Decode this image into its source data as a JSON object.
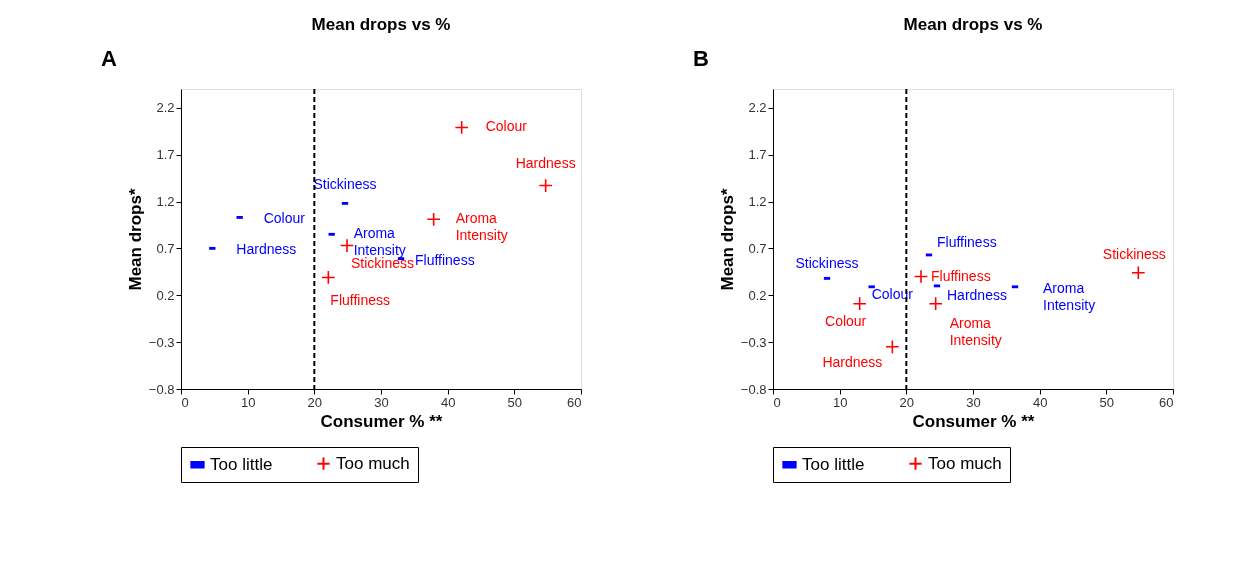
{
  "chart_data": [
    {
      "type": "scatter",
      "title": "Mean drops vs %",
      "xlabel": "Consumer % **",
      "ylabel": "Mean drops*",
      "annotations": [
        "A"
      ],
      "xlim": [
        0,
        60
      ],
      "xticks": [
        0,
        10,
        20,
        30,
        40,
        50,
        60
      ],
      "ylim": [
        -0.8,
        2.4
      ],
      "yticks": [
        2.2,
        1.7,
        1.2,
        0.7,
        0.2,
        -0.3,
        -0.8
      ],
      "grid": false,
      "legend": "bottom",
      "ref_lines": [
        {
          "axis": "x",
          "value": 20,
          "line_style": "dashed",
          "color": "#000000"
        }
      ],
      "series": [
        {
          "name": "Too little",
          "color": "#0000ff",
          "marker": "square",
          "x": [
            8.8,
            4.7,
            24.6,
            22.6,
            33.0
          ],
          "values": [
            1.03,
            0.7,
            1.18,
            0.85,
            0.59
          ],
          "value_labels": [
            "Colour",
            "Hardness",
            "Stickiness",
            "Aroma Intensity",
            "Fluffiness"
          ]
        },
        {
          "name": "Too much",
          "color": "#ff0000",
          "marker": "cross",
          "x": [
            42.1,
            54.7,
            37.9,
            24.9,
            22.1
          ],
          "values": [
            1.99,
            1.37,
            1.01,
            0.73,
            0.39
          ],
          "value_labels": [
            "Colour",
            "Hardness",
            "Aroma Intensity",
            "Stickiness",
            "Fluffiness"
          ]
        }
      ]
    },
    {
      "type": "scatter",
      "title": "Mean drops vs %",
      "xlabel": "Consumer % **",
      "ylabel": "Mean drops*",
      "annotations": [
        "B"
      ],
      "xlim": [
        0,
        60
      ],
      "xticks": [
        0,
        10,
        20,
        30,
        40,
        50,
        60
      ],
      "ylim": [
        -0.8,
        2.4
      ],
      "yticks": [
        2.2,
        1.7,
        1.2,
        0.7,
        0.2,
        -0.3,
        -0.8
      ],
      "grid": false,
      "legend": "bottom",
      "ref_lines": [
        {
          "axis": "x",
          "value": 20,
          "line_style": "dashed",
          "color": "#000000"
        }
      ],
      "series": [
        {
          "name": "Too little",
          "color": "#0000ff",
          "marker": "square",
          "x": [
            23.4,
            8.1,
            14.8,
            24.6,
            36.3
          ],
          "values": [
            0.63,
            0.38,
            0.29,
            0.3,
            0.29
          ],
          "value_labels": [
            "Fluffiness",
            "Stickiness",
            "Colour",
            "Hardness",
            "Aroma Intensity"
          ]
        },
        {
          "name": "Too much",
          "color": "#ff0000",
          "marker": "cross",
          "x": [
            54.8,
            22.2,
            13.0,
            24.4,
            17.9
          ],
          "values": [
            0.44,
            0.4,
            0.11,
            0.11,
            -0.35
          ],
          "value_labels": [
            "Stickiness",
            "Fluffiness",
            "Colour",
            "Aroma Intensity",
            "Hardness"
          ]
        }
      ]
    }
  ]
}
